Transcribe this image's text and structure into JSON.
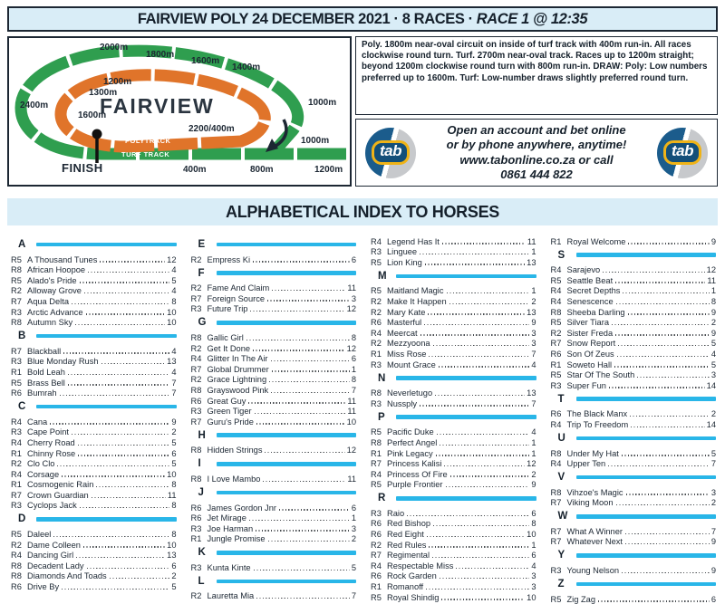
{
  "header": {
    "title_main": "FAIRVIEW POLY 24 DECEMBER 2021 · 8 RACES ·",
    "title_race": "RACE 1 @ 12:35"
  },
  "track_info": "Poly. 1800m near-oval circuit on inside of turf track with 400m run-in. All races clockwise round turn. Turf. 2700m near-oval track. Races up to 1200m straight; beyond 1200m clockwise round turn with 800m run-in. DRAW: Poly: Low numbers preferred up to 1600m. Turf: Low-number draws slightly preferred round turn.",
  "ad": {
    "lines": [
      "Open an account and bet online",
      "or by phone anywhere, anytime!",
      "www.tabonline.co.za or call",
      "0861 444 822"
    ],
    "logo_text": "tab"
  },
  "track_map": {
    "colors": {
      "turf": "#2f9e4f",
      "poly": "#e0742a",
      "arrow": "#1c2733"
    },
    "labels": {
      "m2400": "2400m",
      "m2000": "2000m",
      "m1800": "1800m",
      "m1600_top": "1600m",
      "m1400": "1400m",
      "m1000_right": "1000m",
      "m1000_low": "1000m",
      "m1200_br": "1200m",
      "m800": "800m",
      "m400": "400m",
      "p1200": "1200m",
      "p1300": "1300m",
      "p1600": "1600m",
      "p2200_400": "2200/400m",
      "name": "FAIRVIEW",
      "polytrack": "POLYTRACK",
      "turftrack": "TURF TRACK",
      "finish": "FINISH"
    }
  },
  "index": {
    "title": "ALPHABETICAL INDEX TO HORSES",
    "columns": [
      {
        "items": [
          {
            "letter": "A"
          },
          {
            "r": "R5",
            "n": "A Thousand Tunes",
            "p": "12"
          },
          {
            "r": "R8",
            "n": "African Hoopoe",
            "p": "4"
          },
          {
            "r": "R5",
            "n": "Alado's Pride",
            "p": "5"
          },
          {
            "r": "R2",
            "n": "Alloway Grove",
            "p": "4"
          },
          {
            "r": "R7",
            "n": "Aqua Delta",
            "p": "8"
          },
          {
            "r": "R3",
            "n": "Arctic Advance",
            "p": "10"
          },
          {
            "r": "R8",
            "n": "Autumn Sky",
            "p": "10"
          },
          {
            "letter": "B"
          },
          {
            "r": "R7",
            "n": "Blackball",
            "p": "4"
          },
          {
            "r": "R3",
            "n": "Blue Monday Rush",
            "p": "13"
          },
          {
            "r": "R1",
            "n": "Bold Leah",
            "p": "4"
          },
          {
            "r": "R5",
            "n": "Brass Bell",
            "p": "7"
          },
          {
            "r": "R6",
            "n": "Bumrah",
            "p": "7"
          },
          {
            "letter": "C"
          },
          {
            "r": "R4",
            "n": "Cana",
            "p": "9"
          },
          {
            "r": "R3",
            "n": "Cape Point",
            "p": "2"
          },
          {
            "r": "R4",
            "n": "Cherry Road",
            "p": "5"
          },
          {
            "r": "R1",
            "n": "Chinny Rose",
            "p": "6"
          },
          {
            "r": "R2",
            "n": "Clo Clo",
            "p": "5"
          },
          {
            "r": "R4",
            "n": "Corsage",
            "p": "10"
          },
          {
            "r": "R1",
            "n": "Cosmogenic Rain",
            "p": "8"
          },
          {
            "r": "R7",
            "n": "Crown Guardian",
            "p": "11"
          },
          {
            "r": "R3",
            "n": "Cyclops Jack",
            "p": "8"
          },
          {
            "letter": "D"
          },
          {
            "r": "R5",
            "n": "Daleel",
            "p": "8"
          },
          {
            "r": "R2",
            "n": "Dame Colleen",
            "p": "10"
          },
          {
            "r": "R4",
            "n": "Dancing Girl",
            "p": "13"
          },
          {
            "r": "R8",
            "n": "Decadent Lady",
            "p": "6"
          },
          {
            "r": "R8",
            "n": "Diamonds And Toads",
            "p": "2"
          },
          {
            "r": "R6",
            "n": "Drive By",
            "p": "5"
          }
        ]
      },
      {
        "items": [
          {
            "letter": "E"
          },
          {
            "r": "R2",
            "n": "Empress Ki",
            "p": "6"
          },
          {
            "letter": "F"
          },
          {
            "r": "R2",
            "n": "Fame And Claim",
            "p": "11"
          },
          {
            "r": "R7",
            "n": "Foreign Source",
            "p": "3"
          },
          {
            "r": "R3",
            "n": "Future Trip",
            "p": "12"
          },
          {
            "letter": "G"
          },
          {
            "r": "R8",
            "n": "Gallic Girl",
            "p": "8"
          },
          {
            "r": "R2",
            "n": "Get It Done",
            "p": "12"
          },
          {
            "r": "R4",
            "n": "Glitter In The Air",
            "p": "6"
          },
          {
            "r": "R7",
            "n": "Global Drummer",
            "p": "1"
          },
          {
            "r": "R2",
            "n": "Grace Lightning",
            "p": "8"
          },
          {
            "r": "R8",
            "n": "Grayswood Pink",
            "p": "7"
          },
          {
            "r": "R6",
            "n": "Great Guy",
            "p": "11"
          },
          {
            "r": "R3",
            "n": "Green Tiger",
            "p": "11"
          },
          {
            "r": "R7",
            "n": "Guru's Pride",
            "p": "10"
          },
          {
            "letter": "H"
          },
          {
            "r": "R8",
            "n": "Hidden Strings",
            "p": "12"
          },
          {
            "letter": "I"
          },
          {
            "r": "R8",
            "n": "I Love Mambo",
            "p": "11"
          },
          {
            "letter": "J"
          },
          {
            "r": "R6",
            "n": "James Gordon Jnr",
            "p": "6"
          },
          {
            "r": "R6",
            "n": "Jet Mirage",
            "p": "1"
          },
          {
            "r": "R3",
            "n": "Joe Harman",
            "p": "3"
          },
          {
            "r": "R1",
            "n": "Jungle Promise",
            "p": "2"
          },
          {
            "letter": "K"
          },
          {
            "r": "R3",
            "n": "Kunta Kinte",
            "p": "5"
          },
          {
            "letter": "L"
          },
          {
            "r": "R2",
            "n": "Lauretta Mia",
            "p": "7"
          }
        ]
      },
      {
        "items": [
          {
            "r": "R4",
            "n": "Legend Has It",
            "p": "11"
          },
          {
            "r": "R3",
            "n": "Linguee",
            "p": "1"
          },
          {
            "r": "R5",
            "n": "Lion King",
            "p": "13"
          },
          {
            "letter": "M"
          },
          {
            "r": "R5",
            "n": "Maitland Magic",
            "p": "1"
          },
          {
            "r": "R2",
            "n": "Make It Happen",
            "p": "2"
          },
          {
            "r": "R2",
            "n": "Mary Kate",
            "p": "13"
          },
          {
            "r": "R6",
            "n": "Masterful",
            "p": "9"
          },
          {
            "r": "R4",
            "n": "Meercat",
            "p": "3"
          },
          {
            "r": "R2",
            "n": "Mezzyoona",
            "p": "3"
          },
          {
            "r": "R1",
            "n": "Miss Rose",
            "p": "7"
          },
          {
            "r": "R3",
            "n": "Mount Grace",
            "p": "4"
          },
          {
            "letter": "N"
          },
          {
            "r": "R8",
            "n": "Neverletugo",
            "p": "13"
          },
          {
            "r": "R3",
            "n": "Nussply",
            "p": "7"
          },
          {
            "letter": "P"
          },
          {
            "r": "R5",
            "n": "Pacific Duke",
            "p": "4"
          },
          {
            "r": "R8",
            "n": "Perfect Angel",
            "p": "1"
          },
          {
            "r": "R1",
            "n": "Pink Legacy",
            "p": "1"
          },
          {
            "r": "R7",
            "n": "Princess Kalisi",
            "p": "12"
          },
          {
            "r": "R4",
            "n": "Princess Of Fire",
            "p": "2"
          },
          {
            "r": "R5",
            "n": "Purple Frontier",
            "p": "9"
          },
          {
            "letter": "R"
          },
          {
            "r": "R3",
            "n": "Raio",
            "p": "6"
          },
          {
            "r": "R6",
            "n": "Red Bishop",
            "p": "8"
          },
          {
            "r": "R6",
            "n": "Red Eight",
            "p": "10"
          },
          {
            "r": "R2",
            "n": "Red Rules",
            "p": "1"
          },
          {
            "r": "R7",
            "n": "Regimental",
            "p": "6"
          },
          {
            "r": "R4",
            "n": "Respectable Miss",
            "p": "4"
          },
          {
            "r": "R6",
            "n": "Rock Garden",
            "p": "3"
          },
          {
            "r": "R1",
            "n": "Romanoff",
            "p": "3"
          },
          {
            "r": "R5",
            "n": "Royal Shindig",
            "p": "10"
          }
        ]
      },
      {
        "items": [
          {
            "r": "R1",
            "n": "Royal Welcome",
            "p": "9"
          },
          {
            "letter": "S"
          },
          {
            "r": "R4",
            "n": "Sarajevo",
            "p": "12"
          },
          {
            "r": "R5",
            "n": "Seattle Beat",
            "p": "11"
          },
          {
            "r": "R4",
            "n": "Secret Depths",
            "p": "1"
          },
          {
            "r": "R4",
            "n": "Senescence",
            "p": "8"
          },
          {
            "r": "R8",
            "n": "Sheeba Darling",
            "p": "9"
          },
          {
            "r": "R5",
            "n": "Silver Tiara",
            "p": "2"
          },
          {
            "r": "R2",
            "n": "Sister Freda",
            "p": "9"
          },
          {
            "r": "R7",
            "n": "Snow Report",
            "p": "5"
          },
          {
            "r": "R6",
            "n": "Son Of Zeus",
            "p": "4"
          },
          {
            "r": "R1",
            "n": "Soweto Hall",
            "p": "5"
          },
          {
            "r": "R5",
            "n": "Star Of The South",
            "p": "3"
          },
          {
            "r": "R3",
            "n": "Super Fun",
            "p": "14"
          },
          {
            "letter": "T"
          },
          {
            "r": "R6",
            "n": "The Black Manx",
            "p": "2"
          },
          {
            "r": "R4",
            "n": "Trip To Freedom",
            "p": "14"
          },
          {
            "letter": "U"
          },
          {
            "r": "R8",
            "n": "Under My Hat",
            "p": "5"
          },
          {
            "r": "R4",
            "n": "Upper Ten",
            "p": "7"
          },
          {
            "letter": "V"
          },
          {
            "r": "R8",
            "n": "Vihzoe's Magic",
            "p": "3"
          },
          {
            "r": "R7",
            "n": "Viking Moon",
            "p": "2"
          },
          {
            "letter": "W"
          },
          {
            "r": "R7",
            "n": "What A Winner",
            "p": "7"
          },
          {
            "r": "R7",
            "n": "Whatever Next",
            "p": "9"
          },
          {
            "letter": "Y"
          },
          {
            "r": "R3",
            "n": "Young Nelson",
            "p": "9"
          },
          {
            "letter": "Z"
          },
          {
            "r": "R5",
            "n": "Zig Zag",
            "p": "6"
          }
        ]
      }
    ]
  }
}
